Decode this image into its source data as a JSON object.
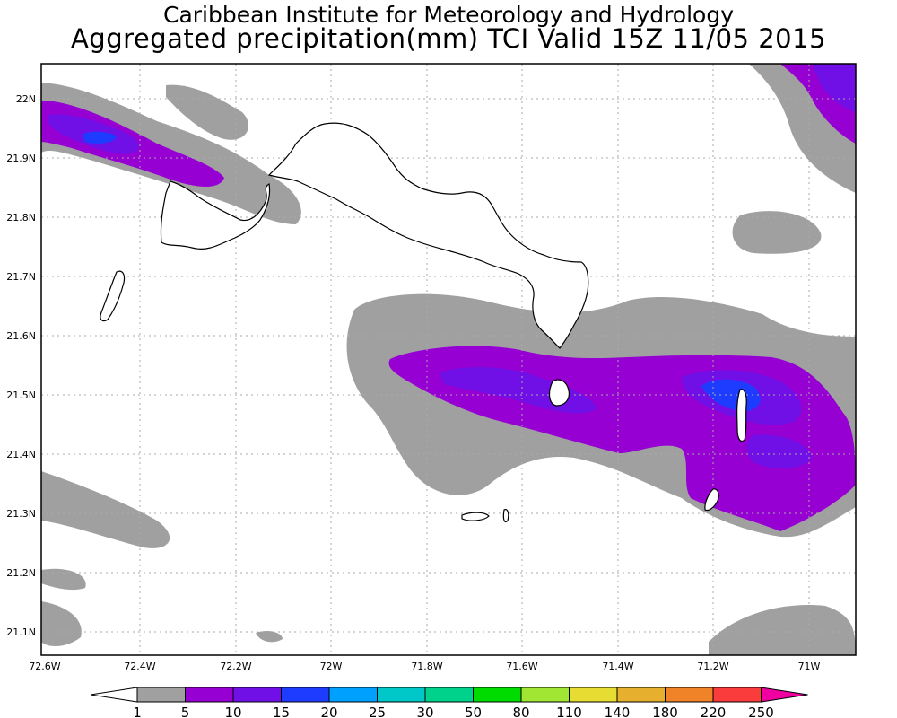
{
  "title": {
    "line1": "Caribbean Institute for Meteorology and Hydrology",
    "line2": "Aggregated precipitation(mm) TCI Valid 15Z 11/05 2015"
  },
  "map": {
    "region": "Turks and Caicos Islands",
    "lon_range": [
      -72.6,
      -70.95
    ],
    "lat_range": [
      21.07,
      22.06
    ],
    "gridlines": true,
    "lon_ticks": [
      "72.6W",
      "72.4W",
      "72.2W",
      "72W",
      "71.8W",
      "71.6W",
      "71.4W",
      "71.2W",
      "71W"
    ],
    "lat_ticks": [
      "22N",
      "21.9N",
      "21.8N",
      "21.7N",
      "21.6N",
      "21.5N",
      "21.4N",
      "21.3N",
      "21.2N",
      "21.1N"
    ]
  },
  "legend": {
    "labels": [
      "1",
      "5",
      "10",
      "15",
      "20",
      "25",
      "30",
      "50",
      "80",
      "110",
      "140",
      "180",
      "220",
      "250"
    ],
    "colors": [
      "#ffffff",
      "#a0a0a0",
      "#9600d2",
      "#7010e6",
      "#1e3cff",
      "#00a0ff",
      "#00c8c8",
      "#00d28c",
      "#00dc00",
      "#a0e632",
      "#e6dc32",
      "#e6af2d",
      "#f08228",
      "#fa3c3c",
      "#f000a0"
    ]
  }
}
